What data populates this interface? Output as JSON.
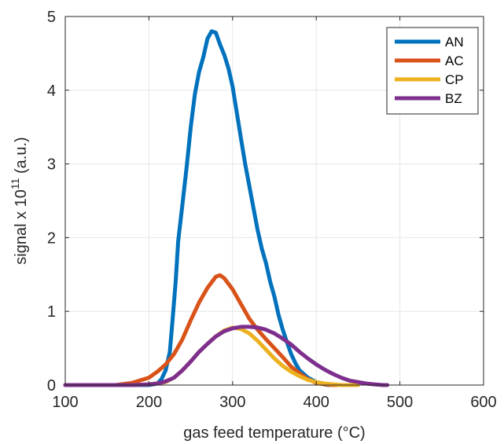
{
  "chart_data": {
    "type": "line",
    "xlabel": "gas feed temperature (°C)",
    "ylabel_prefix": "signal x 10",
    "ylabel_exponent": "11",
    "ylabel_suffix": "  (a.u.)",
    "xlim": [
      100,
      600
    ],
    "ylim": [
      0,
      5
    ],
    "xticks": [
      100,
      200,
      300,
      400,
      500,
      600
    ],
    "yticks": [
      0,
      1,
      2,
      3,
      4,
      5
    ],
    "grid": true,
    "legend_position": "top-right",
    "series": [
      {
        "name": "AN",
        "color": "#0072BD",
        "x": [
          100,
          110,
          130,
          150,
          170,
          190,
          200,
          210,
          215,
          220,
          225,
          228,
          232,
          235,
          240,
          245,
          250,
          255,
          260,
          265,
          270,
          275,
          280,
          285,
          290,
          295,
          300,
          305,
          310,
          315,
          320,
          325,
          330,
          335,
          340,
          345,
          350,
          355,
          360,
          365,
          370,
          375,
          380,
          390,
          400,
          410,
          415
        ],
        "y": [
          0,
          0,
          0,
          0,
          0,
          0,
          0,
          0.02,
          0.08,
          0.2,
          0.45,
          0.85,
          1.4,
          1.95,
          2.45,
          2.95,
          3.5,
          3.95,
          4.25,
          4.45,
          4.7,
          4.8,
          4.78,
          4.62,
          4.48,
          4.3,
          4.05,
          3.7,
          3.35,
          3.0,
          2.7,
          2.4,
          2.1,
          1.85,
          1.65,
          1.4,
          1.2,
          0.95,
          0.75,
          0.58,
          0.42,
          0.3,
          0.2,
          0.1,
          0.04,
          0.01,
          0
        ]
      },
      {
        "name": "AC",
        "color": "#D95319",
        "x": [
          100,
          110,
          160,
          180,
          200,
          210,
          220,
          230,
          240,
          250,
          260,
          270,
          280,
          285,
          290,
          300,
          310,
          320,
          330,
          340,
          350,
          360,
          370,
          380,
          390,
          400,
          410,
          420,
          425
        ],
        "y": [
          0,
          0,
          0,
          0.03,
          0.1,
          0.18,
          0.28,
          0.42,
          0.62,
          0.88,
          1.12,
          1.32,
          1.47,
          1.49,
          1.45,
          1.3,
          1.1,
          0.9,
          0.75,
          0.62,
          0.5,
          0.38,
          0.25,
          0.16,
          0.08,
          0.03,
          0.01,
          0,
          0
        ]
      },
      {
        "name": "CP",
        "color": "#EDB120",
        "x": [
          160,
          180,
          200,
          220,
          230,
          240,
          250,
          260,
          270,
          280,
          290,
          300,
          310,
          320,
          330,
          340,
          350,
          360,
          370,
          380,
          390,
          400,
          410,
          420,
          430,
          440,
          450
        ],
        "y": [
          0,
          0,
          0.01,
          0.04,
          0.1,
          0.2,
          0.32,
          0.45,
          0.56,
          0.66,
          0.74,
          0.78,
          0.76,
          0.7,
          0.6,
          0.48,
          0.36,
          0.26,
          0.18,
          0.12,
          0.07,
          0.04,
          0.02,
          0.01,
          0,
          0,
          0
        ]
      },
      {
        "name": "BZ",
        "color": "#7E2F8E",
        "x": [
          100,
          110,
          160,
          180,
          200,
          210,
          220,
          230,
          240,
          250,
          260,
          270,
          280,
          290,
          300,
          310,
          320,
          330,
          340,
          350,
          360,
          370,
          380,
          390,
          400,
          410,
          420,
          430,
          440,
          450,
          460,
          470,
          480,
          485
        ],
        "y": [
          0,
          0,
          0,
          0,
          0.01,
          0.02,
          0.05,
          0.1,
          0.2,
          0.32,
          0.45,
          0.56,
          0.66,
          0.73,
          0.77,
          0.79,
          0.79,
          0.78,
          0.75,
          0.7,
          0.63,
          0.55,
          0.45,
          0.36,
          0.28,
          0.21,
          0.15,
          0.1,
          0.06,
          0.04,
          0.02,
          0.01,
          0,
          0
        ]
      }
    ]
  }
}
